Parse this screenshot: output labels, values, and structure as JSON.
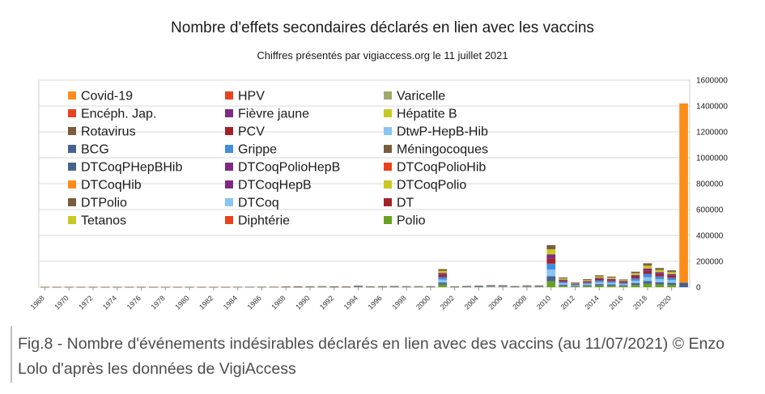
{
  "figure": {
    "title": "Nombre d'effets secondaires déclarés en lien avec les vaccins",
    "subtitle": "Chiffres présentés par vigiaccess.org le 11 juillet 2021",
    "caption": "Fig.8 - Nombre d'événements indésirables déclarés en lien avec des vaccins (au 11/07/2021) © Enzo Lolo d'après les données de VigiAccess"
  },
  "chart_data": {
    "type": "bar",
    "stacked": true,
    "title": "Nombre d'effets secondaires déclarés en lien avec les vaccins",
    "subtitle": "Chiffres présentés par vigiaccess.org le 11 juillet 2021",
    "xlabel": "",
    "ylabel": "",
    "ylim": [
      0,
      1600000
    ],
    "y_ticks": [
      0,
      200000,
      400000,
      600000,
      800000,
      1000000,
      1200000,
      1400000,
      1600000
    ],
    "y_axis_position": "right",
    "grid": true,
    "legend_position": "top-left, inside",
    "x_tick_labels": [
      "1968",
      "1970",
      "1972",
      "1974",
      "1976",
      "1978",
      "1980",
      "1982",
      "1984",
      "1986",
      "1988",
      "1990",
      "1992",
      "1994",
      "1996",
      "1998",
      "2000",
      "2002",
      "2004",
      "2006",
      "2008",
      "2010",
      "2012",
      "2014",
      "2016",
      "2018",
      "2020"
    ],
    "legend": [
      {
        "name": "Covid-19",
        "color": "#ff8c1a"
      },
      {
        "name": "HPV",
        "color": "#e8431e"
      },
      {
        "name": "Varicelle",
        "color": "#a0a86a"
      },
      {
        "name": "Encéph. Jap.",
        "color": "#e8431e"
      },
      {
        "name": "Fièvre jaune",
        "color": "#7e2a84"
      },
      {
        "name": "Hépatite B",
        "color": "#c8c823"
      },
      {
        "name": "Rotavirus",
        "color": "#7a5c3c"
      },
      {
        "name": "PCV",
        "color": "#a3222a"
      },
      {
        "name": "DtwP-HepB-Hib",
        "color": "#89c4f4"
      },
      {
        "name": "BCG",
        "color": "#46628e"
      },
      {
        "name": "Grippe",
        "color": "#3f8ee0"
      },
      {
        "name": "Méningocoques",
        "color": "#7a5c3c"
      },
      {
        "name": "DTCoqPHepBHib",
        "color": "#46628e"
      },
      {
        "name": "DTCoqPolioHepB",
        "color": "#7e2a84"
      },
      {
        "name": "DTCoqPolioHib",
        "color": "#e8431e"
      },
      {
        "name": "DTCoqHib",
        "color": "#ff8c1a"
      },
      {
        "name": "DTCoqHepB",
        "color": "#7e2a84"
      },
      {
        "name": "DTCoqPolio",
        "color": "#c8c823"
      },
      {
        "name": "DTPolio",
        "color": "#7a5c3c"
      },
      {
        "name": "DTCoq",
        "color": "#89c4f4"
      },
      {
        "name": "DT",
        "color": "#a3222a"
      },
      {
        "name": "Tetanos",
        "color": "#c8c823"
      },
      {
        "name": "Diphtérie",
        "color": "#e8431e"
      },
      {
        "name": "Polio",
        "color": "#6aa121"
      }
    ],
    "totals_by_year": [
      {
        "year": 1968,
        "total": 2000
      },
      {
        "year": 1969,
        "total": 2000
      },
      {
        "year": 1970,
        "total": 2000
      },
      {
        "year": 1971,
        "total": 2000
      },
      {
        "year": 1972,
        "total": 2000
      },
      {
        "year": 1973,
        "total": 2000
      },
      {
        "year": 1974,
        "total": 2000
      },
      {
        "year": 1975,
        "total": 2000
      },
      {
        "year": 1976,
        "total": 2000
      },
      {
        "year": 1977,
        "total": 2000
      },
      {
        "year": 1978,
        "total": 2000
      },
      {
        "year": 1979,
        "total": 2000
      },
      {
        "year": 1980,
        "total": 2000
      },
      {
        "year": 1981,
        "total": 2000
      },
      {
        "year": 1982,
        "total": 2000
      },
      {
        "year": 1983,
        "total": 2000
      },
      {
        "year": 1984,
        "total": 3000
      },
      {
        "year": 1985,
        "total": 3000
      },
      {
        "year": 1986,
        "total": 4000
      },
      {
        "year": 1987,
        "total": 4000
      },
      {
        "year": 1988,
        "total": 5000
      },
      {
        "year": 1989,
        "total": 6000
      },
      {
        "year": 1990,
        "total": 7000
      },
      {
        "year": 1991,
        "total": 8000
      },
      {
        "year": 1992,
        "total": 6000
      },
      {
        "year": 1993,
        "total": 5000
      },
      {
        "year": 1994,
        "total": 12000
      },
      {
        "year": 1995,
        "total": 7000
      },
      {
        "year": 1996,
        "total": 8000
      },
      {
        "year": 1997,
        "total": 9000
      },
      {
        "year": 1998,
        "total": 8000
      },
      {
        "year": 1999,
        "total": 8000
      },
      {
        "year": 2000,
        "total": 8000
      },
      {
        "year": 2001,
        "total": 140000
      },
      {
        "year": 2002,
        "total": 7000
      },
      {
        "year": 2003,
        "total": 10000
      },
      {
        "year": 2004,
        "total": 12000
      },
      {
        "year": 2005,
        "total": 17000
      },
      {
        "year": 2006,
        "total": 16000
      },
      {
        "year": 2007,
        "total": 9000
      },
      {
        "year": 2008,
        "total": 14000
      },
      {
        "year": 2009,
        "total": 14000
      },
      {
        "year": 2010,
        "total": 325000
      },
      {
        "year": 2011,
        "total": 75000
      },
      {
        "year": 2012,
        "total": 38000
      },
      {
        "year": 2013,
        "total": 62000
      },
      {
        "year": 2014,
        "total": 92000
      },
      {
        "year": 2015,
        "total": 82000
      },
      {
        "year": 2016,
        "total": 60000
      },
      {
        "year": 2017,
        "total": 120000
      },
      {
        "year": 2018,
        "total": 185000
      },
      {
        "year": 2019,
        "total": 148000
      },
      {
        "year": 2020,
        "total": 130000
      },
      {
        "year": 2021,
        "total": 1420000
      }
    ],
    "covid19_2021": 1385000
  }
}
